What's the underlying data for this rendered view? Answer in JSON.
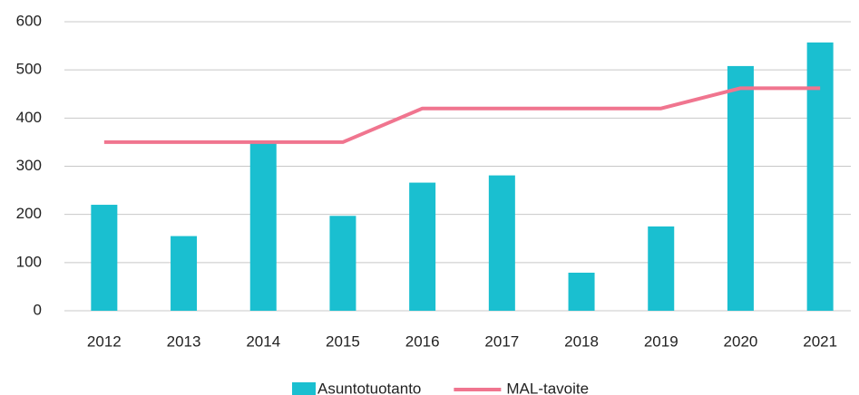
{
  "chart_data": {
    "type": "bar",
    "categories": [
      "2012",
      "2013",
      "2014",
      "2015",
      "2016",
      "2017",
      "2018",
      "2019",
      "2020",
      "2021"
    ],
    "series": [
      {
        "name": "Asuntotuotanto",
        "type": "bar",
        "color": "#1abfd0",
        "values": [
          220,
          155,
          350,
          197,
          266,
          281,
          79,
          175,
          508,
          557
        ]
      },
      {
        "name": "MAL-tavoite",
        "type": "line",
        "color": "#f0758f",
        "values": [
          350,
          350,
          350,
          350,
          420,
          420,
          420,
          420,
          462,
          462
        ]
      }
    ],
    "ylim": [
      0,
      600
    ],
    "yticks": [
      0,
      100,
      200,
      300,
      400,
      500,
      600
    ],
    "grid": true,
    "legend": "bottom"
  }
}
